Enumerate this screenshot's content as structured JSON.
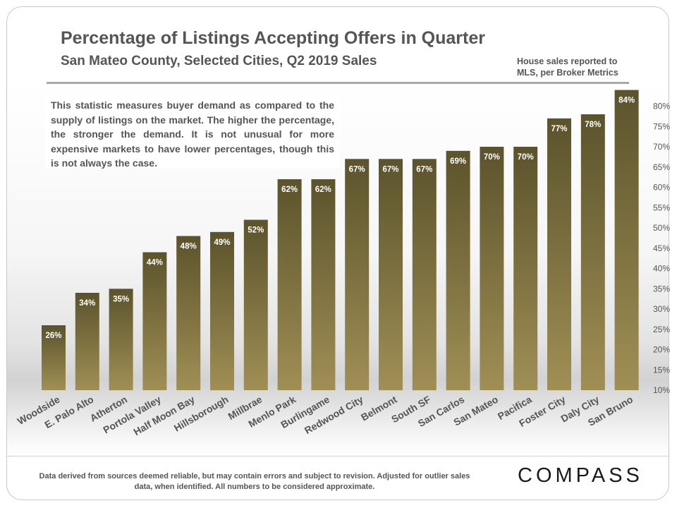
{
  "header": {
    "title": "Percentage of Listings Accepting Offers in Quarter",
    "subtitle": "San Mateo County, Selected Cities,  Q2 2019 Sales",
    "source_note": "House sales reported to MLS, per Broker Metrics"
  },
  "callout": {
    "text": "This statistic measures buyer demand as compared to the supply of listings on the market. The higher the percentage, the stronger the demand. It is not unusual for more expensive markets to have lower percentages, though this is not always the case."
  },
  "footer": {
    "disclaimer": "Data derived from sources deemed reliable, but may contain errors and subject to revision. Adjusted for outlier sales data, when identified. All numbers to be considered approximate.",
    "logo_text": "COMPASS"
  },
  "colors": {
    "bar_top": "#5b532c",
    "bar_bottom": "#a08f55",
    "text_gray": "#555555"
  },
  "chart_data": {
    "type": "bar",
    "categories": [
      "Woodside",
      "E. Palo Alto",
      "Atherton",
      "Portola Valley",
      "Half Moon Bay",
      "Hillsborough",
      "Millbrae",
      "Menlo Park",
      "Burlingame",
      "Redwood City",
      "Belmont",
      "South SF",
      "San Carlos",
      "San Mateo",
      "Pacifica",
      "Foster City",
      "Daly City",
      "San Bruno"
    ],
    "values": [
      26,
      34,
      35,
      44,
      48,
      49,
      52,
      62,
      62,
      67,
      67,
      67,
      69,
      70,
      70,
      77,
      78,
      84
    ],
    "value_labels": [
      "26%",
      "34%",
      "35%",
      "44%",
      "48%",
      "49%",
      "52%",
      "62%",
      "62%",
      "67%",
      "67%",
      "67%",
      "69%",
      "70%",
      "70%",
      "77%",
      "78%",
      "84%"
    ],
    "ylim": [
      10,
      85
    ],
    "y_ticks": [
      10,
      15,
      20,
      25,
      30,
      35,
      40,
      45,
      50,
      55,
      60,
      65,
      70,
      75,
      80
    ],
    "y_tick_labels": [
      "10%",
      "15%",
      "20%",
      "25%",
      "30%",
      "35%",
      "40%",
      "45%",
      "50%",
      "55%",
      "60%",
      "65%",
      "70%",
      "75%",
      "80%"
    ],
    "y_axis_position": "right",
    "grid": false,
    "legend": "none",
    "title": "Percentage of Listings Accepting Offers in Quarter"
  }
}
